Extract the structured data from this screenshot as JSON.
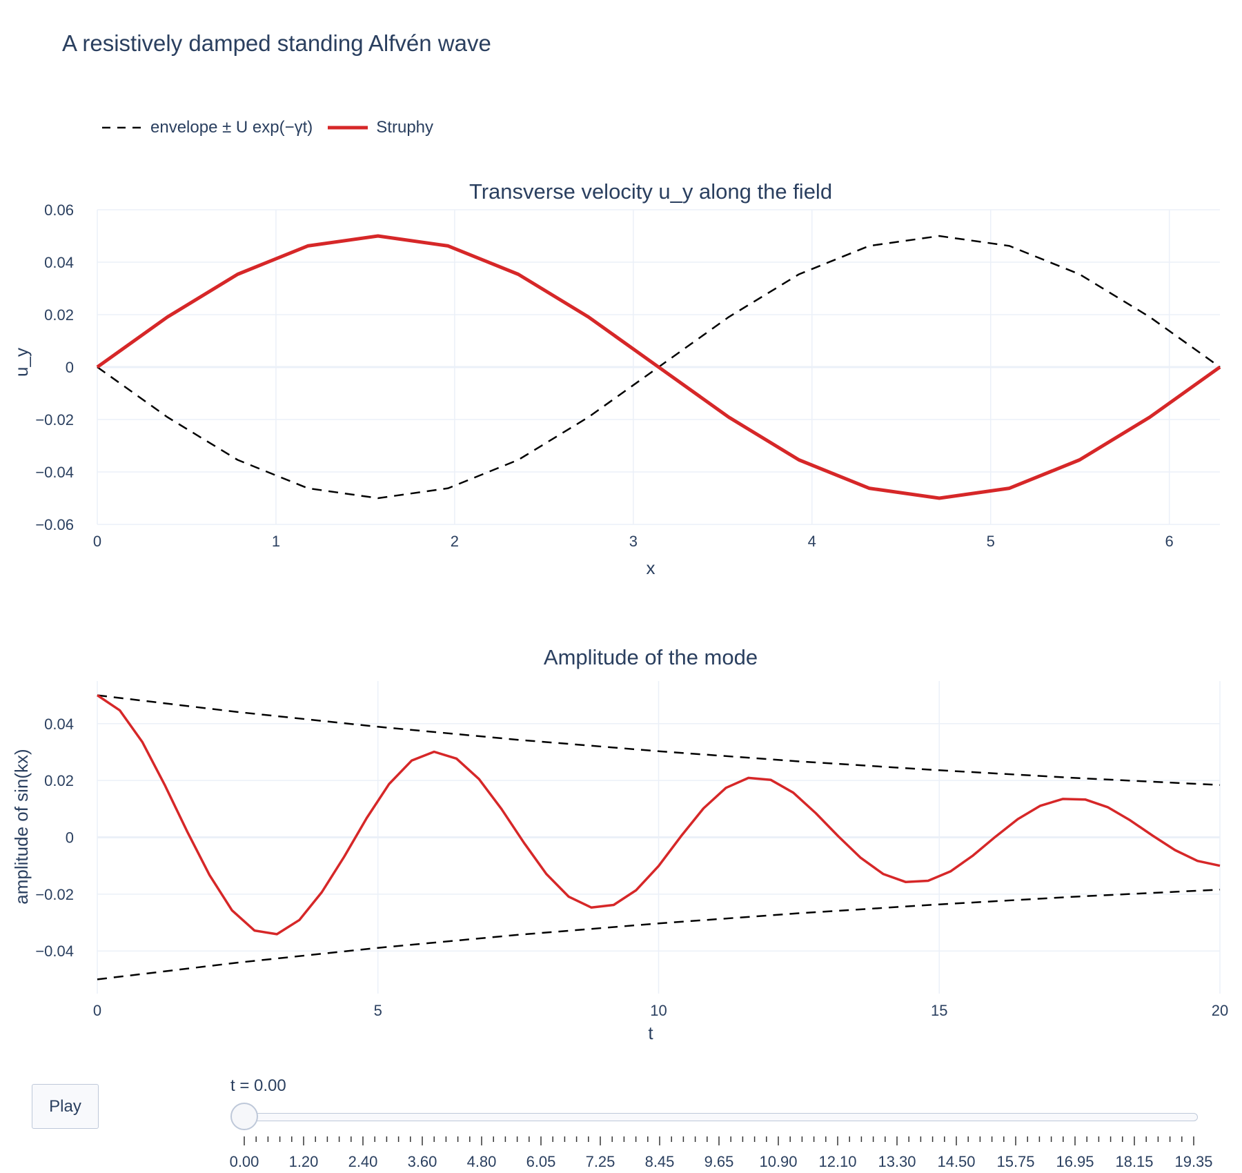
{
  "title": "A resistively damped standing Alfvén wave",
  "legend": [
    {
      "label": "envelope ± U exp(−γt)",
      "color": "#000000",
      "dash": "dash"
    },
    {
      "label": "Struphy",
      "color": "#d62728",
      "dash": "solid"
    }
  ],
  "colors": {
    "envelope": "#000000",
    "struphy": "#d62728",
    "grid": "#ebf0f8",
    "text": "#2a3f5f"
  },
  "chart_data": [
    {
      "type": "line",
      "title": "Transverse velocity u_y along the field",
      "xlabel": "x",
      "ylabel": "u_y",
      "xlim": [
        0,
        6.2832
      ],
      "ylim": [
        -0.06,
        0.06
      ],
      "x_ticks": [
        0,
        1,
        2,
        3,
        4,
        5,
        6
      ],
      "x_tick_labels": [
        "0",
        "1",
        "2",
        "3",
        "4",
        "5",
        "6"
      ],
      "y_ticks": [
        -0.06,
        -0.04,
        -0.02,
        0,
        0.02,
        0.04,
        0.06
      ],
      "y_tick_labels": [
        "−0.06",
        "−0.04",
        "−0.02",
        "0",
        "0.02",
        "0.04",
        "0.06"
      ],
      "grid": true,
      "series": [
        {
          "name": "envelope ± U exp(−γt)",
          "dash": "dash",
          "x": [
            0,
            0.3927,
            0.7854,
            1.1781,
            1.5708,
            1.9635,
            2.3562,
            2.7489,
            3.1416,
            3.5343,
            3.927,
            4.3197,
            4.7124,
            5.1051,
            5.4978,
            5.8905,
            6.2832
          ],
          "y": [
            0,
            -0.0191,
            -0.0354,
            -0.0462,
            -0.05,
            -0.0462,
            -0.0354,
            -0.0191,
            0,
            0.0191,
            0.0354,
            0.0462,
            0.05,
            0.0462,
            0.0354,
            0.0191,
            0
          ]
        },
        {
          "name": "Struphy",
          "dash": "solid",
          "x": [
            0,
            0.3927,
            0.7854,
            1.1781,
            1.5708,
            1.9635,
            2.3562,
            2.7489,
            3.1416,
            3.5343,
            3.927,
            4.3197,
            4.7124,
            5.1051,
            5.4978,
            5.8905,
            6.2832
          ],
          "y": [
            0,
            0.0191,
            0.0354,
            0.0462,
            0.05,
            0.0462,
            0.0354,
            0.0191,
            0,
            -0.0191,
            -0.0354,
            -0.0462,
            -0.05,
            -0.0462,
            -0.0354,
            -0.0191,
            0
          ]
        }
      ]
    },
    {
      "type": "line",
      "title": "Amplitude of the mode",
      "xlabel": "t",
      "ylabel": "amplitude of sin(kx)",
      "xlim": [
        0,
        20
      ],
      "ylim": [
        -0.055,
        0.055
      ],
      "x_ticks": [
        0,
        5,
        10,
        15,
        20
      ],
      "x_tick_labels": [
        "0",
        "5",
        "10",
        "15",
        "20"
      ],
      "y_ticks": [
        -0.04,
        -0.02,
        0,
        0.02,
        0.04
      ],
      "y_tick_labels": [
        "−0.04",
        "−0.02",
        "0",
        "0.02",
        "0.04"
      ],
      "grid": true,
      "series": [
        {
          "name": "envelope ± U exp(−γt)",
          "dash": "dash",
          "x": [
            0,
            2.5,
            5,
            7.5,
            10,
            12.5,
            15,
            17.5,
            20
          ],
          "y": [
            0.05,
            0.0441,
            0.0389,
            0.0343,
            0.0303,
            0.0267,
            0.0236,
            0.0208,
            0.0184
          ]
        },
        {
          "name": "envelope ± U exp(−γt)",
          "dash": "dash",
          "x": [
            0,
            2.5,
            5,
            7.5,
            10,
            12.5,
            15,
            17.5,
            20
          ],
          "y": [
            -0.05,
            -0.0441,
            -0.0389,
            -0.0343,
            -0.0303,
            -0.0267,
            -0.0236,
            -0.0208,
            -0.0184
          ]
        },
        {
          "name": "Struphy",
          "dash": "solid",
          "x": [
            0,
            0.4,
            0.8,
            1.2,
            1.6,
            2.0,
            2.4,
            2.8,
            3.2,
            3.6,
            4.0,
            4.4,
            4.8,
            5.2,
            5.6,
            6.0,
            6.4,
            6.8,
            7.2,
            7.6,
            8.0,
            8.4,
            8.8,
            9.2,
            9.6,
            10.0,
            10.4,
            10.8,
            11.2,
            11.6,
            12.0,
            12.4,
            12.8,
            13.2,
            13.6,
            14.0,
            14.4,
            14.8,
            15.2,
            15.6,
            16.0,
            16.4,
            16.8,
            17.2,
            17.6,
            18.0,
            18.4,
            18.8,
            19.2,
            19.6,
            20.0
          ],
          "y": [
            0.05,
            0.0447,
            0.0336,
            0.0185,
            0.0021,
            -0.0133,
            -0.0257,
            -0.0328,
            -0.0341,
            -0.0291,
            -0.0193,
            -0.0068,
            0.0068,
            0.0188,
            0.027,
            0.0301,
            0.0277,
            0.0205,
            0.01,
            -0.0019,
            -0.0129,
            -0.0209,
            -0.0247,
            -0.0238,
            -0.0186,
            -0.0101,
            0.0004,
            0.0102,
            0.0174,
            0.0209,
            0.0202,
            0.0157,
            0.0085,
            0.0004,
            -0.0072,
            -0.0129,
            -0.0157,
            -0.0153,
            -0.012,
            -0.0064,
            0.0002,
            0.0064,
            0.0111,
            0.0135,
            0.0133,
            0.0106,
            0.006,
            0.0006,
            -0.0045,
            -0.0083,
            -0.01
          ]
        }
      ]
    }
  ],
  "controls": {
    "play_label": "Play",
    "slider_label": "t = 0.00",
    "slider_value": 0,
    "slider_tick_labels": [
      "0.00",
      "1.20",
      "2.40",
      "3.60",
      "4.80",
      "6.05",
      "7.25",
      "8.45",
      "9.65",
      "10.90",
      "12.10",
      "13.30",
      "14.50",
      "15.75",
      "16.95",
      "18.15",
      "19.35"
    ]
  }
}
